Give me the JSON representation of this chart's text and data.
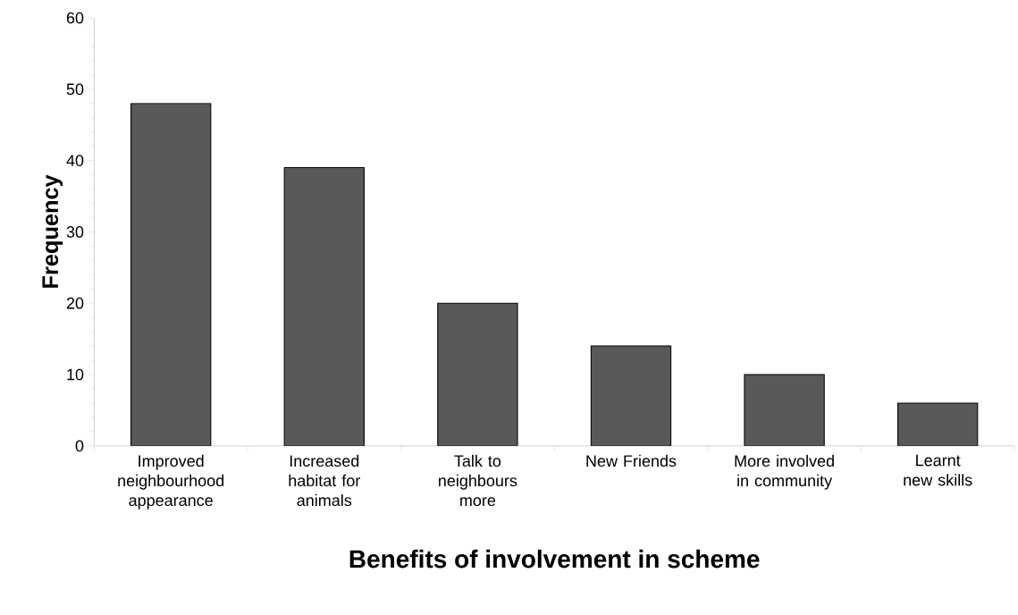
{
  "chart_data": {
    "type": "bar",
    "xlabel": "Benefits of involvement in scheme",
    "ylabel": "Frequency",
    "categories": [
      "Improved neighbourhood appearance",
      "Increased habitat for animals",
      "Talk to neighbours more",
      "New Friends",
      "More involved in community",
      "Learnt new skills"
    ],
    "values": [
      48,
      39,
      20,
      14,
      10,
      6
    ],
    "color": "#595959",
    "ylim": [
      0,
      60
    ],
    "yticks": [
      0,
      10,
      20,
      30,
      40,
      50,
      60
    ],
    "grid": false
  }
}
